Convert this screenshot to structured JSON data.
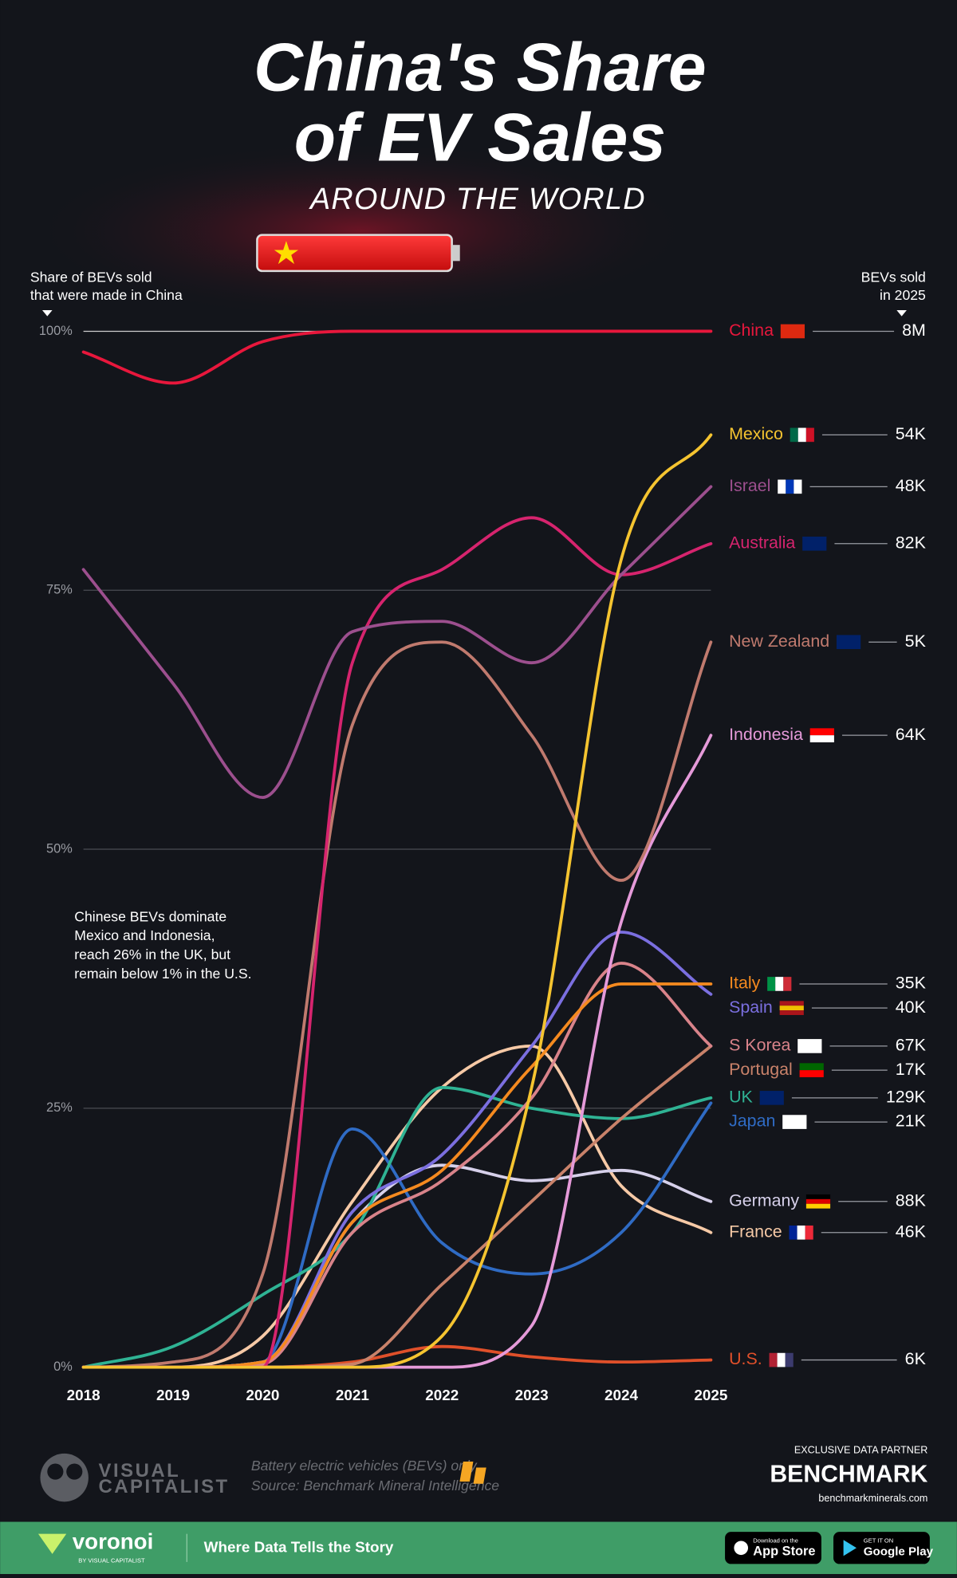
{
  "chart_data": {
    "type": "line",
    "title": [
      "China's Share",
      "of EV Sales"
    ],
    "subtitle": "AROUND THE WORLD",
    "ylabel": [
      "Share of BEVs sold",
      "that were made in China"
    ],
    "value_header": [
      "BEVs sold",
      "in 2025"
    ],
    "annotation": [
      "Chinese BEVs dominate",
      "Mexico and Indonesia,",
      "reach 26% in the UK, but",
      "remain below 1% in the U.S."
    ],
    "x": [
      2018,
      2019,
      2020,
      2021,
      2022,
      2023,
      2024,
      2025
    ],
    "xlim": [
      2018,
      2025
    ],
    "xticks": [
      2018,
      2019,
      2020,
      2021,
      2022,
      2023,
      2024,
      2025
    ],
    "ylim": [
      0,
      100
    ],
    "yticks": [
      {
        "value": 0,
        "label": "0%"
      },
      {
        "value": 25,
        "label": "25%"
      },
      {
        "value": 50,
        "label": "50%"
      },
      {
        "value": 75,
        "label": "75%"
      },
      {
        "value": 100,
        "label": "100%"
      }
    ],
    "grid": true,
    "series": [
      {
        "name": "China",
        "color": "#e8173c",
        "sales": "8M",
        "values": [
          98,
          95,
          99,
          100,
          100,
          100,
          100,
          100
        ]
      },
      {
        "name": "Mexico",
        "color": "#f5c430",
        "sales": "54K",
        "values": [
          0,
          0,
          0,
          0,
          3,
          27,
          78,
          90
        ]
      },
      {
        "name": "Israel",
        "color": "#9c4f8e",
        "sales": "48K",
        "values": [
          77,
          66,
          55,
          71,
          72,
          68,
          76.5,
          85
        ]
      },
      {
        "name": "Australia",
        "color": "#d6246e",
        "sales": "82K",
        "values": [
          0,
          0,
          0,
          68,
          77,
          82,
          76.5,
          79.5
        ]
      },
      {
        "name": "New Zealand",
        "color": "#c07a6e",
        "sales": "5K",
        "values": [
          0,
          0.5,
          9,
          62,
          70,
          61,
          47,
          70
        ]
      },
      {
        "name": "Indonesia",
        "color": "#e59ad9",
        "sales": "64K",
        "values": [
          0,
          0,
          0,
          0,
          0,
          4,
          43,
          61
        ]
      },
      {
        "name": "Italy",
        "color": "#f58a1f",
        "sales": "35K",
        "values": [
          0,
          0,
          0.5,
          14,
          19,
          29,
          37,
          37
        ]
      },
      {
        "name": "Spain",
        "color": "#7b6fe0",
        "sales": "40K",
        "values": [
          0,
          0,
          0.5,
          15,
          20.5,
          31,
          42,
          36
        ]
      },
      {
        "name": "S Korea",
        "color": "#d9838a",
        "sales": "67K",
        "values": [
          0,
          0,
          0.3,
          13,
          18,
          26,
          39,
          31
        ]
      },
      {
        "name": "Portugal",
        "color": "#c9826a",
        "sales": "17K",
        "values": [
          0,
          0,
          0,
          0.3,
          8,
          16,
          24,
          31
        ]
      },
      {
        "name": "UK",
        "color": "#2fb394",
        "sales": "129K",
        "values": [
          0,
          2,
          7,
          13,
          27,
          25,
          24,
          26
        ]
      },
      {
        "name": "Japan",
        "color": "#2f6bc4",
        "sales": "21K",
        "values": [
          0,
          0,
          0.5,
          23,
          12,
          9,
          13,
          25.5
        ]
      },
      {
        "name": "Germany",
        "color": "#d6d0ea",
        "sales": "88K",
        "values": [
          0,
          0,
          0.5,
          14,
          19.5,
          18,
          19,
          16
        ]
      },
      {
        "name": "France",
        "color": "#f6c9a6",
        "sales": "46K",
        "values": [
          0,
          0,
          3,
          16,
          27,
          31,
          17.5,
          13
        ]
      },
      {
        "name": "U.S.",
        "color": "#e0502a",
        "sales": "6K",
        "values": [
          0,
          0,
          0,
          0.5,
          2,
          1,
          0.5,
          0.7
        ]
      }
    ]
  },
  "footer": {
    "brand": [
      "VISUAL",
      "CAPITALIST"
    ],
    "note": "Battery electric vehicles (BEVs) only",
    "source": "Source: Benchmark Mineral Intelligence",
    "partner_label": "EXCLUSIVE DATA PARTNER",
    "partner": "BENCHMARK",
    "partner_url": "benchmarkminerals.com",
    "bar_brand": "voronoi",
    "bar_brand_sub": "BY VISUAL CAPITALIST",
    "tagline": "Where Data Tells the Story",
    "app_store": [
      "Download on the",
      "App Store"
    ],
    "google_play": [
      "GET IT ON",
      "Google Play"
    ]
  }
}
